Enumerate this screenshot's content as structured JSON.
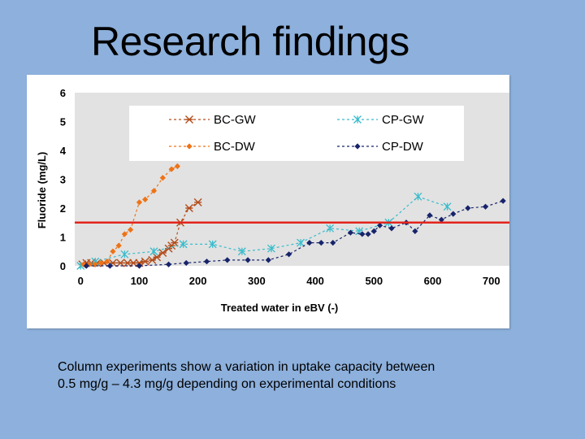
{
  "slide": {
    "title": "Research findings",
    "caption_line1": "Column experiments show a variation in uptake capacity between",
    "caption_line2": "0.5 mg/g – 4.3 mg/g depending on experimental conditions"
  },
  "colors": {
    "bc_gw": "#b34d1b",
    "bc_dw": "#ee7316",
    "cp_gw": "#39bccc",
    "cp_dw": "#17246b",
    "threshold": "#e3241c",
    "plot_bg": "#e2e2e2",
    "legend_bg": "#ffffff"
  },
  "chart_data": {
    "type": "scatter",
    "title": "",
    "xlabel": "Treated water in eBV (-)",
    "ylabel": "Fluoride (mg/L)",
    "xlim": [
      -10,
      735
    ],
    "ylim": [
      0,
      6
    ],
    "x_ticks": [
      0,
      100,
      200,
      300,
      400,
      500,
      600,
      700
    ],
    "y_ticks": [
      0,
      1,
      2,
      3,
      4,
      5,
      6
    ],
    "grid": false,
    "legend_position": "top",
    "threshold_line": {
      "y": 1.5
    },
    "series": [
      {
        "name": "BC-GW",
        "marker": "x-star",
        "x": [
          3,
          10,
          18,
          28,
          40,
          55,
          68,
          80,
          90,
          100,
          110,
          122,
          130,
          140,
          150,
          155,
          160,
          170,
          185,
          200
        ],
        "y": [
          0.05,
          0.1,
          0.1,
          0.1,
          0.1,
          0.1,
          0.1,
          0.1,
          0.1,
          0.1,
          0.15,
          0.2,
          0.3,
          0.45,
          0.6,
          0.7,
          0.8,
          1.5,
          2.0,
          2.2
        ]
      },
      {
        "name": "CP-GW",
        "marker": "asterisk",
        "x": [
          0,
          25,
          75,
          125,
          175,
          225,
          275,
          325,
          375,
          425,
          475,
          525,
          575,
          625
        ],
        "y": [
          0.0,
          0.15,
          0.4,
          0.5,
          0.75,
          0.75,
          0.5,
          0.6,
          0.8,
          1.3,
          1.2,
          1.5,
          2.4,
          2.05
        ]
      },
      {
        "name": "BC-DW",
        "marker": "diamond",
        "x": [
          5,
          15,
          25,
          35,
          45,
          55,
          65,
          75,
          85,
          100,
          110,
          125,
          140,
          155,
          165
        ],
        "y": [
          0.05,
          0.05,
          0.05,
          0.1,
          0.15,
          0.5,
          0.7,
          1.1,
          1.25,
          2.2,
          2.3,
          2.6,
          3.05,
          3.35,
          3.45
        ]
      },
      {
        "name": "CP-DW",
        "marker": "diamond",
        "x": [
          10,
          50,
          100,
          150,
          180,
          215,
          250,
          285,
          320,
          355,
          390,
          410,
          430,
          460,
          480,
          490,
          500,
          510,
          530,
          555,
          570,
          595,
          615,
          635,
          660,
          690,
          720
        ],
        "y": [
          0.0,
          0.0,
          0.0,
          0.05,
          0.1,
          0.15,
          0.2,
          0.2,
          0.2,
          0.4,
          0.8,
          0.8,
          0.8,
          1.15,
          1.1,
          1.1,
          1.2,
          1.4,
          1.3,
          1.5,
          1.2,
          1.75,
          1.6,
          1.8,
          2.0,
          2.05,
          2.25
        ]
      }
    ]
  }
}
